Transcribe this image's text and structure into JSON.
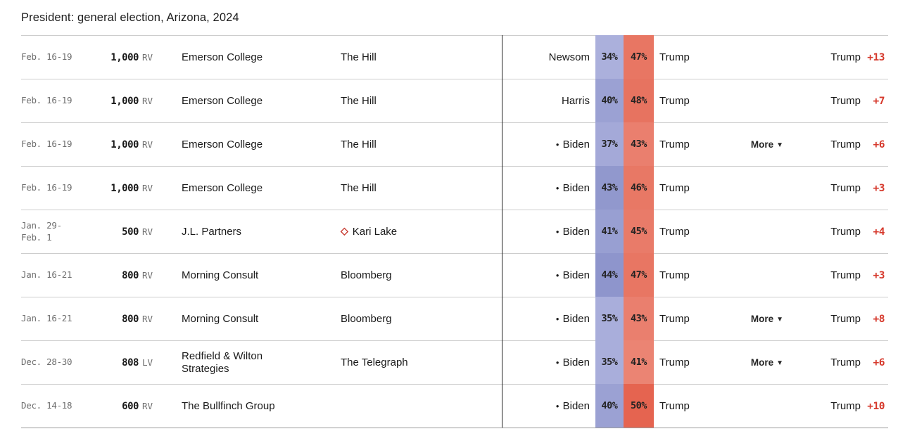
{
  "title": "President: general election, Arizona, 2024",
  "labels": {
    "more": "More"
  },
  "icons": {
    "incumbent_dot": "●",
    "partisan_diamond": "◇",
    "caret_down": "▼"
  },
  "colors": {
    "accent_red": "#d6392c",
    "divider": "#222222",
    "gridline": "#cdcdcd",
    "date_gray": "#6e6e6e"
  },
  "rows": [
    {
      "dates": "Feb. 16-19",
      "dates2": "",
      "sample": "1,000",
      "sample_type": "RV",
      "pollster": "Emerson College",
      "sponsor": "The Hill",
      "sponsor_partisan": false,
      "dem_incumbent": false,
      "dem_name": "Newsom",
      "dem_pct": "34%",
      "rep_pct": "47%",
      "rep_name": "Trump",
      "more": false,
      "leader": "Trump",
      "margin": "+13",
      "dem_color": "#abb0dc",
      "rep_color": "#e87663"
    },
    {
      "dates": "Feb. 16-19",
      "dates2": "",
      "sample": "1,000",
      "sample_type": "RV",
      "pollster": "Emerson College",
      "sponsor": "The Hill",
      "sponsor_partisan": false,
      "dem_incumbent": false,
      "dem_name": "Harris",
      "dem_pct": "40%",
      "rep_pct": "48%",
      "rep_name": "Trump",
      "more": false,
      "leader": "Trump",
      "margin": "+7",
      "dem_color": "#9ba1d3",
      "rep_color": "#e77360"
    },
    {
      "dates": "Feb. 16-19",
      "dates2": "",
      "sample": "1,000",
      "sample_type": "RV",
      "pollster": "Emerson College",
      "sponsor": "The Hill",
      "sponsor_partisan": false,
      "dem_incumbent": true,
      "dem_name": "Biden",
      "dem_pct": "37%",
      "rep_pct": "43%",
      "rep_name": "Trump",
      "more": true,
      "leader": "Trump",
      "margin": "+6",
      "dem_color": "#a4a9d8",
      "rep_color": "#ea7f6e"
    },
    {
      "dates": "Feb. 16-19",
      "dates2": "",
      "sample": "1,000",
      "sample_type": "RV",
      "pollster": "Emerson College",
      "sponsor": "The Hill",
      "sponsor_partisan": false,
      "dem_incumbent": true,
      "dem_name": "Biden",
      "dem_pct": "43%",
      "rep_pct": "46%",
      "rep_name": "Trump",
      "more": false,
      "leader": "Trump",
      "margin": "+3",
      "dem_color": "#9198cd",
      "rep_color": "#e87865"
    },
    {
      "dates": "Jan. 29-",
      "dates2": "Feb. 1",
      "sample": "500",
      "sample_type": "RV",
      "pollster": "J.L. Partners",
      "sponsor": "Kari Lake",
      "sponsor_partisan": true,
      "dem_incumbent": true,
      "dem_name": "Biden",
      "dem_pct": "41%",
      "rep_pct": "45%",
      "rep_name": "Trump",
      "more": false,
      "leader": "Trump",
      "margin": "+4",
      "dem_color": "#989fd2",
      "rep_color": "#e97b69"
    },
    {
      "dates": "Jan. 16-21",
      "dates2": "",
      "sample": "800",
      "sample_type": "RV",
      "pollster": "Morning Consult",
      "sponsor": "Bloomberg",
      "sponsor_partisan": false,
      "dem_incumbent": true,
      "dem_name": "Biden",
      "dem_pct": "44%",
      "rep_pct": "47%",
      "rep_name": "Trump",
      "more": false,
      "leader": "Trump",
      "margin": "+3",
      "dem_color": "#8e95cc",
      "rep_color": "#e87663"
    },
    {
      "dates": "Jan. 16-21",
      "dates2": "",
      "sample": "800",
      "sample_type": "RV",
      "pollster": "Morning Consult",
      "sponsor": "Bloomberg",
      "sponsor_partisan": false,
      "dem_incumbent": true,
      "dem_name": "Biden",
      "dem_pct": "35%",
      "rep_pct": "43%",
      "rep_name": "Trump",
      "more": true,
      "leader": "Trump",
      "margin": "+8",
      "dem_color": "#a9aedb",
      "rep_color": "#ea7f6e"
    },
    {
      "dates": "Dec. 28-30",
      "dates2": "",
      "sample": "808",
      "sample_type": "LV",
      "pollster": "Redfield & Wilton Strategies",
      "sponsor": "The Telegraph",
      "sponsor_partisan": false,
      "dem_incumbent": true,
      "dem_name": "Biden",
      "dem_pct": "35%",
      "rep_pct": "41%",
      "rep_name": "Trump",
      "more": true,
      "leader": "Trump",
      "margin": "+6",
      "dem_color": "#a9aedb",
      "rep_color": "#eb8473"
    },
    {
      "dates": "Dec. 14-18",
      "dates2": "",
      "sample": "600",
      "sample_type": "RV",
      "pollster": "The Bullfinch Group",
      "sponsor": "",
      "sponsor_partisan": false,
      "dem_incumbent": true,
      "dem_name": "Biden",
      "dem_pct": "40%",
      "rep_pct": "50%",
      "rep_name": "Trump",
      "more": false,
      "leader": "Trump",
      "margin": "+10",
      "dem_color": "#9ba1d3",
      "rep_color": "#e56450"
    }
  ]
}
